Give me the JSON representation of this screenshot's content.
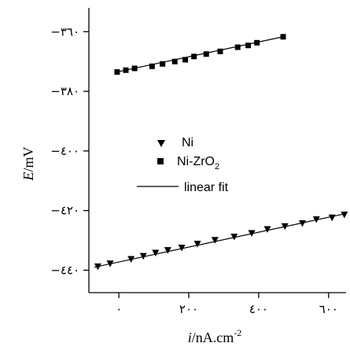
{
  "chart_data": {
    "type": "scatter",
    "xlabel": {
      "symbol": "i",
      "unit": "/nA.cm",
      "sup": "-2"
    },
    "ylabel": {
      "symbol": "E",
      "unit": "/mV"
    },
    "xlim": [
      -70,
      650
    ],
    "ylim": [
      -447,
      -352
    ],
    "x_ticks": [
      {
        "value": 0,
        "label": "۰"
      },
      {
        "value": 200,
        "label": "۲۰۰"
      },
      {
        "value": 400,
        "label": "٤۰۰"
      },
      {
        "value": 600,
        "label": "٦۰۰"
      }
    ],
    "y_ticks": [
      {
        "value": -360,
        "label": "−٣٦۰"
      },
      {
        "value": -380,
        "label": "−٣٨۰"
      },
      {
        "value": -400,
        "label": "−٤۰۰"
      },
      {
        "value": -420,
        "label": "−٤٢۰"
      },
      {
        "value": -440,
        "label": "−٤٤۰"
      }
    ],
    "legend_position": "center-left",
    "series": [
      {
        "name": "Ni",
        "marker": "triangle-down",
        "color": "#000000",
        "x": [
          -60,
          -25,
          35,
          70,
          105,
          140,
          180,
          225,
          275,
          330,
          380,
          425,
          475,
          525,
          565,
          610,
          645
        ],
        "y": [
          -438.8,
          -437.8,
          -436.3,
          -435.3,
          -434.2,
          -433.3,
          -432.5,
          -431.2,
          -429.9,
          -428.8,
          -427.6,
          -426.3,
          -425.3,
          -424.3,
          -423.0,
          -422.4,
          -421.4
        ],
        "fit": {
          "x": [
            -70,
            650
          ],
          "y": [
            -439.0,
            -421.0
          ]
        }
      },
      {
        "name": "Ni-ZrO",
        "name_sub": "2",
        "marker": "square",
        "color": "#000000",
        "x": [
          -5,
          20,
          45,
          95,
          125,
          160,
          190,
          215,
          250,
          290,
          340,
          370,
          395,
          470
        ],
        "y": [
          -373.5,
          -372.9,
          -372.3,
          -371.6,
          -370.8,
          -370.0,
          -369.4,
          -368.3,
          -367.5,
          -366.6,
          -365.2,
          -364.6,
          -363.7,
          -361.7
        ],
        "fit": {
          "x": [
            -5,
            470
          ],
          "y": [
            -373.5,
            -361.7
          ]
        }
      }
    ],
    "fit_label": "linear fit"
  }
}
